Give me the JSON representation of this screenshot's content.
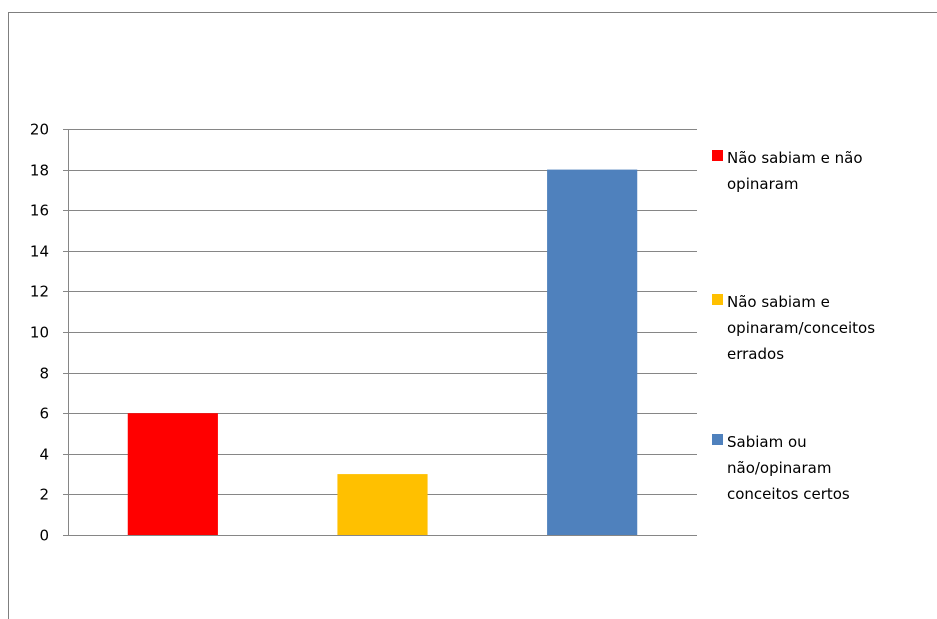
{
  "chart_data": {
    "type": "bar",
    "categories": [
      "",
      "",
      ""
    ],
    "values": [
      6,
      3,
      18
    ],
    "colors": [
      "#ff0000",
      "#ffc000",
      "#4f81bd"
    ],
    "ylim": [
      0,
      20
    ],
    "yticks": [
      0,
      2,
      4,
      6,
      8,
      10,
      12,
      14,
      16,
      18,
      20
    ],
    "grid": true,
    "legend_position": "right",
    "legend": [
      {
        "label": "Não sabiam e não opinaram",
        "lines": [
          "Não sabiam e não",
          "opinaram"
        ],
        "color": "#ff0000"
      },
      {
        "label": "Não sabiam e opinaram/conceitos errados",
        "lines": [
          "Não sabiam e",
          "opinaram/conceitos",
          "errados"
        ],
        "color": "#ffc000"
      },
      {
        "label": "Sabiam ou não/opinaram conceitos certos",
        "lines": [
          "Sabiam ou",
          "não/opinaram",
          "conceitos certos"
        ],
        "color": "#4f81bd"
      }
    ]
  }
}
